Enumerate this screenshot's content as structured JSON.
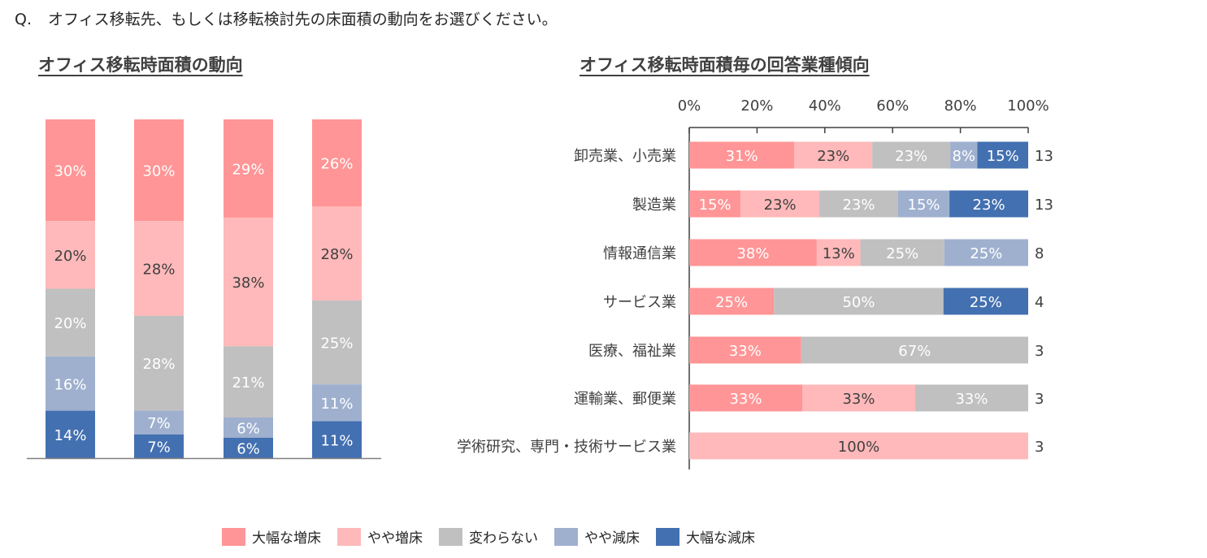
{
  "question": {
    "prefix": "Q.",
    "text": "オフィス移転先、もしくは移転検討先の床面積の動向をお選びください。"
  },
  "chart_data": [
    {
      "type": "bar",
      "stacked": true,
      "orientation": "vertical",
      "title": "オフィス移転時面積の動向",
      "categories": [
        "",
        "",
        "",
        ""
      ],
      "series": [
        {
          "name": "大幅な増床",
          "color": "#FF9596",
          "values": [
            30,
            30,
            29,
            26
          ]
        },
        {
          "name": "やや増床",
          "color": "#FFB9BA",
          "values": [
            20,
            28,
            38,
            28
          ]
        },
        {
          "name": "変わらない",
          "color": "#C0C0C0",
          "values": [
            20,
            28,
            21,
            25
          ]
        },
        {
          "name": "やや減床",
          "color": "#9FB0CF",
          "values": [
            16,
            7,
            6,
            11
          ]
        },
        {
          "name": "大幅な減床",
          "color": "#4370B1",
          "values": [
            14,
            7,
            6,
            11
          ]
        }
      ],
      "value_suffix": "%"
    },
    {
      "type": "bar",
      "stacked": true,
      "orientation": "horizontal",
      "title": "オフィス移転時面積毎の回答業種傾向",
      "categories": [
        "卸売業、小売業",
        "製造業",
        "情報通信業",
        "サービス業",
        "医療、福祉業",
        "運輸業、郵便業",
        "学術研究、専門・技術サービス業"
      ],
      "series": [
        {
          "name": "大幅な増床",
          "color": "#FF9596",
          "values": [
            31,
            15,
            38,
            25,
            33,
            33,
            0
          ]
        },
        {
          "name": "やや増床",
          "color": "#FFB9BA",
          "values": [
            23,
            23,
            13,
            0,
            0,
            33,
            100
          ]
        },
        {
          "name": "変わらない",
          "color": "#C0C0C0",
          "values": [
            23,
            23,
            25,
            50,
            67,
            33,
            0
          ]
        },
        {
          "name": "やや減床",
          "color": "#9FB0CF",
          "values": [
            8,
            15,
            25,
            0,
            0,
            0,
            0
          ]
        },
        {
          "name": "大幅な減床",
          "color": "#4370B1",
          "values": [
            15,
            23,
            0,
            25,
            0,
            0,
            0
          ]
        }
      ],
      "counts": [
        "13",
        "13",
        "8",
        "4",
        "3",
        "3",
        "3"
      ],
      "xlim": [
        0,
        100
      ],
      "xticks": [
        "0%",
        "20%",
        "40%",
        "60%",
        "80%",
        "100%"
      ],
      "value_suffix": "%"
    }
  ],
  "legend": [
    {
      "label": "大幅な増床",
      "color": "#FF9596"
    },
    {
      "label": "やや増床",
      "color": "#FFB9BA"
    },
    {
      "label": "変わらない",
      "color": "#C0C0C0"
    },
    {
      "label": "やや減床",
      "color": "#9FB0CF"
    },
    {
      "label": "大幅な減床",
      "color": "#4370B1"
    }
  ]
}
